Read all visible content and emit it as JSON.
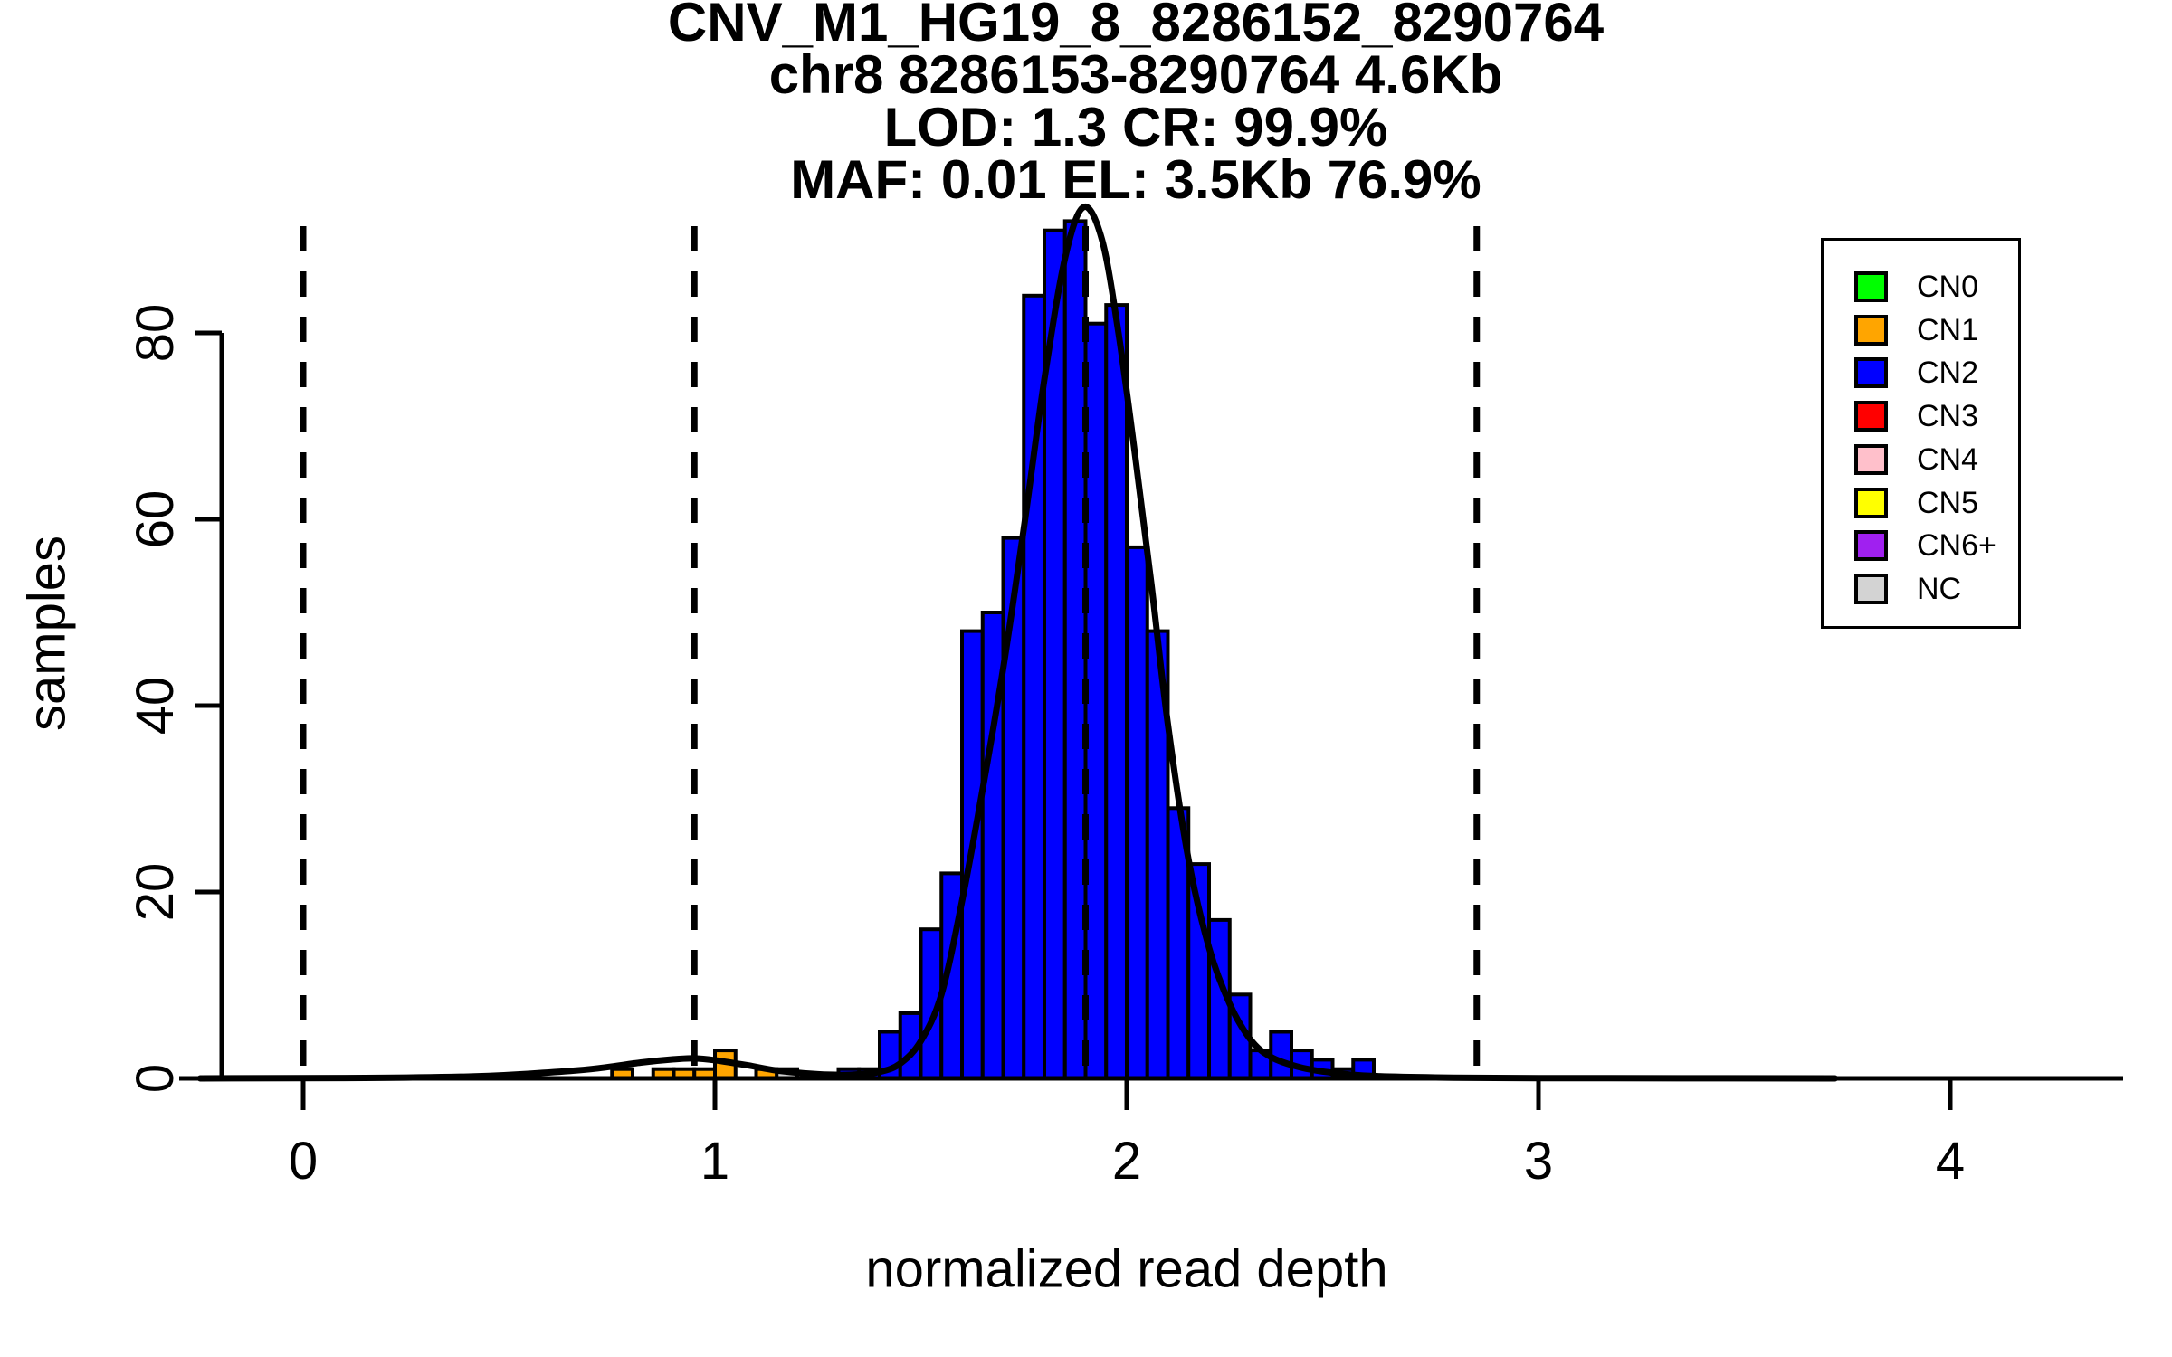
{
  "title": {
    "lines": [
      "CNV_M1_HG19_8_8286152_8290764",
      "chr8 8286153-8290764 4.6Kb",
      "LOD: 1.3 CR: 99.9%",
      "MAF: 0.01 EL: 3.5Kb 76.9%"
    ]
  },
  "legend": {
    "items": [
      {
        "label": "CN0",
        "color": "#00FF00"
      },
      {
        "label": "CN1",
        "color": "#FFA500"
      },
      {
        "label": "CN2",
        "color": "#0000FF"
      },
      {
        "label": "CN3",
        "color": "#FF0000"
      },
      {
        "label": "CN4",
        "color": "#FFC0CB"
      },
      {
        "label": "CN5",
        "color": "#FFFF00"
      },
      {
        "label": "CN6+",
        "color": "#A020F0"
      },
      {
        "label": "NC",
        "color": "#D3D3D3"
      }
    ]
  },
  "chart_data": {
    "type": "bar",
    "subtype": "histogram",
    "title": "CNV_M1_HG19_8_8286152_8290764 | chr8 8286153-8290764 4.6Kb | LOD: 1.3 CR: 99.9% | MAF: 0.01 EL: 3.5Kb 76.9%",
    "xlabel": "normalized read depth",
    "ylabel": "samples",
    "x_ticks": [
      0,
      1,
      2,
      3,
      4
    ],
    "y_ticks": [
      0,
      20,
      40,
      60,
      80
    ],
    "xlim": [
      -0.3,
      4.42
    ],
    "ylim": [
      0,
      93
    ],
    "grid": false,
    "legend_position": "top-right",
    "bin_width": 0.05,
    "bins": [
      {
        "x": 0.75,
        "count": 1,
        "cn": "CN1"
      },
      {
        "x": 0.85,
        "count": 1,
        "cn": "CN1"
      },
      {
        "x": 0.9,
        "count": 1,
        "cn": "CN1"
      },
      {
        "x": 0.95,
        "count": 1,
        "cn": "CN1"
      },
      {
        "x": 1.0,
        "count": 3,
        "cn": "CN1"
      },
      {
        "x": 1.1,
        "count": 1,
        "cn": "CN1"
      },
      {
        "x": 1.15,
        "count": 1,
        "cn": "NC"
      },
      {
        "x": 1.3,
        "count": 1,
        "cn": "CN2"
      },
      {
        "x": 1.35,
        "count": 1,
        "cn": "CN2"
      },
      {
        "x": 1.4,
        "count": 5,
        "cn": "CN2"
      },
      {
        "x": 1.45,
        "count": 7,
        "cn": "CN2"
      },
      {
        "x": 1.5,
        "count": 16,
        "cn": "CN2"
      },
      {
        "x": 1.55,
        "count": 22,
        "cn": "CN2"
      },
      {
        "x": 1.6,
        "count": 48,
        "cn": "CN2"
      },
      {
        "x": 1.65,
        "count": 50,
        "cn": "CN2"
      },
      {
        "x": 1.7,
        "count": 58,
        "cn": "CN2"
      },
      {
        "x": 1.75,
        "count": 84,
        "cn": "CN2"
      },
      {
        "x": 1.8,
        "count": 91,
        "cn": "CN2"
      },
      {
        "x": 1.85,
        "count": 92,
        "cn": "CN2"
      },
      {
        "x": 1.9,
        "count": 81,
        "cn": "CN2"
      },
      {
        "x": 1.95,
        "count": 83,
        "cn": "CN2"
      },
      {
        "x": 2.0,
        "count": 57,
        "cn": "CN2"
      },
      {
        "x": 2.05,
        "count": 48,
        "cn": "CN2"
      },
      {
        "x": 2.1,
        "count": 29,
        "cn": "CN2"
      },
      {
        "x": 2.15,
        "count": 23,
        "cn": "CN2"
      },
      {
        "x": 2.2,
        "count": 17,
        "cn": "CN2"
      },
      {
        "x": 2.25,
        "count": 9,
        "cn": "CN2"
      },
      {
        "x": 2.3,
        "count": 3,
        "cn": "CN2"
      },
      {
        "x": 2.35,
        "count": 5,
        "cn": "CN2"
      },
      {
        "x": 2.4,
        "count": 3,
        "cn": "CN2"
      },
      {
        "x": 2.45,
        "count": 2,
        "cn": "CN2"
      },
      {
        "x": 2.5,
        "count": 1,
        "cn": "CN2"
      },
      {
        "x": 2.55,
        "count": 2,
        "cn": "CN2"
      }
    ],
    "dashed_lines": [
      0,
      0.95,
      1.9,
      2.85
    ],
    "curve": [
      [
        -0.25,
        0
      ],
      [
        0.15,
        0.05
      ],
      [
        0.4,
        0.2
      ],
      [
        0.55,
        0.5
      ],
      [
        0.7,
        1.0
      ],
      [
        0.82,
        1.7
      ],
      [
        0.9,
        2.05
      ],
      [
        0.95,
        2.15
      ],
      [
        1.0,
        1.95
      ],
      [
        1.08,
        1.4
      ],
      [
        1.15,
        0.85
      ],
      [
        1.25,
        0.45
      ],
      [
        1.33,
        0.4
      ],
      [
        1.4,
        0.7
      ],
      [
        1.45,
        1.6
      ],
      [
        1.5,
        4
      ],
      [
        1.55,
        9
      ],
      [
        1.6,
        19
      ],
      [
        1.65,
        31
      ],
      [
        1.7,
        44
      ],
      [
        1.75,
        59
      ],
      [
        1.8,
        75
      ],
      [
        1.85,
        88
      ],
      [
        1.895,
        93.5
      ],
      [
        1.94,
        90
      ],
      [
        1.98,
        80
      ],
      [
        2.02,
        67
      ],
      [
        2.06,
        53
      ],
      [
        2.1,
        38
      ],
      [
        2.15,
        23.5
      ],
      [
        2.2,
        14
      ],
      [
        2.25,
        8
      ],
      [
        2.3,
        4.2
      ],
      [
        2.35,
        2.3
      ],
      [
        2.42,
        1.2
      ],
      [
        2.5,
        0.6
      ],
      [
        2.6,
        0.25
      ],
      [
        2.75,
        0.1
      ],
      [
        3.0,
        0.03
      ],
      [
        3.72,
        0
      ]
    ],
    "colors": {
      "CN0": "#00FF00",
      "CN1": "#FFA500",
      "CN2": "#0000FF",
      "CN3": "#FF0000",
      "CN4": "#FFC0CB",
      "CN5": "#FFFF00",
      "CN6+": "#A020F0",
      "NC": "#D3D3D3",
      "axis": "#000000",
      "curve": "#000000"
    }
  }
}
